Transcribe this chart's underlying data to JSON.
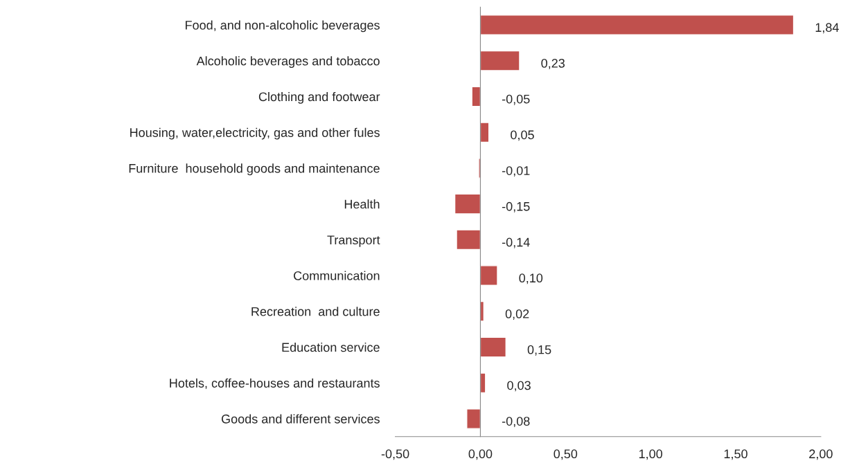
{
  "chart_data": {
    "type": "bar",
    "orientation": "horizontal",
    "categories": [
      "Food, and non-alcoholic beverages",
      "Alcoholic beverages and tobacco",
      "Clothing and footwear",
      "Housing, water,electricity, gas and other fules",
      "Furniture  household goods and maintenance",
      "Health",
      "Transport",
      "Communication",
      "Recreation  and culture",
      "Education service",
      "Hotels, coffee-houses and restaurants",
      "Goods and different services"
    ],
    "values": [
      1.84,
      0.23,
      -0.05,
      0.05,
      -0.01,
      -0.15,
      -0.14,
      0.1,
      0.02,
      0.15,
      0.03,
      -0.08
    ],
    "value_labels": [
      "1,84",
      "0,23",
      "-0,05",
      "0,05",
      "-0,01",
      "-0,15",
      "-0,14",
      "0,10",
      "0,02",
      "0,15",
      "0,03",
      "-0,08"
    ],
    "color": "#c0504d",
    "xlim": [
      -0.5,
      2.0
    ],
    "xticks": [
      {
        "value": -0.5,
        "label": "-0,50"
      },
      {
        "value": 0,
        "label": "0,00"
      },
      {
        "value": 0.5,
        "label": "0,50"
      },
      {
        "value": 1.0,
        "label": "1,00"
      },
      {
        "value": 1.5,
        "label": "1,50"
      },
      {
        "value": 2.0,
        "label": "2,00"
      }
    ],
    "legend": false
  }
}
